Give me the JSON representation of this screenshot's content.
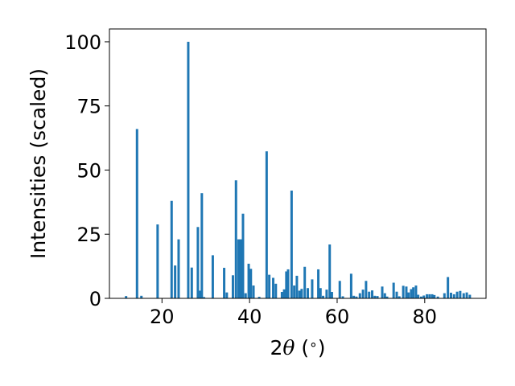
{
  "chart_data": {
    "type": "bar",
    "title": "",
    "xlabel_parts": [
      "2",
      "θ",
      " (",
      "∘",
      ")"
    ],
    "ylabel": "Intensities (scaled)",
    "xlim": [
      8,
      94
    ],
    "ylim": [
      0,
      105
    ],
    "xticks": [
      20,
      40,
      60,
      80
    ],
    "xtick_labels": [
      "20",
      "40",
      "60",
      "80"
    ],
    "yticks": [
      0,
      25,
      50,
      75,
      100
    ],
    "ytick_labels": [
      "0",
      "25",
      "50",
      "75",
      "100"
    ],
    "bar_width_deg": 0.55,
    "bar_color": "#1f77b4",
    "grid": false,
    "legend": "none",
    "x": [
      11.8,
      14.3,
      15.3,
      19.0,
      22.2,
      23.0,
      23.8,
      26.0,
      26.8,
      28.2,
      28.7,
      29.1,
      29.6,
      31.6,
      34.2,
      34.8,
      36.2,
      36.9,
      37.5,
      38.0,
      38.5,
      39.1,
      39.8,
      40.3,
      40.9,
      42.2,
      43.9,
      44.5,
      45.4,
      46.0,
      47.4,
      47.9,
      48.4,
      48.8,
      49.6,
      50.2,
      50.8,
      51.4,
      51.9,
      52.6,
      53.3,
      54.3,
      55.7,
      56.2,
      56.8,
      57.6,
      58.3,
      58.8,
      60.6,
      61.3,
      63.2,
      63.8,
      64.4,
      65.2,
      65.9,
      66.6,
      67.3,
      68.0,
      68.6,
      69.2,
      70.3,
      70.9,
      71.4,
      72.9,
      73.6,
      74.2,
      75.1,
      75.8,
      76.3,
      76.9,
      77.4,
      78.0,
      78.5,
      79.2,
      79.8,
      80.5,
      81.1,
      81.7,
      82.2,
      83.0,
      84.5,
      85.3,
      86.0,
      86.7,
      87.4,
      88.1,
      88.9,
      89.6,
      90.3
    ],
    "values": [
      0.9,
      66.0,
      1.0,
      28.8,
      38.0,
      12.8,
      23.0,
      100.0,
      12.0,
      27.8,
      3.0,
      41.0,
      0.5,
      16.8,
      11.9,
      2.3,
      9.0,
      46.0,
      23.0,
      23.0,
      33.0,
      2.0,
      13.5,
      11.5,
      5.0,
      0.6,
      57.3,
      9.2,
      8.0,
      5.7,
      2.5,
      3.5,
      10.5,
      11.3,
      42.0,
      5.0,
      8.8,
      3.0,
      3.7,
      12.3,
      4.0,
      7.4,
      11.3,
      4.0,
      1.0,
      3.4,
      21.0,
      2.5,
      6.8,
      0.8,
      9.6,
      1.0,
      0.7,
      2.0,
      3.4,
      6.8,
      2.6,
      3.1,
      1.0,
      0.9,
      4.6,
      2.0,
      0.7,
      6.1,
      2.6,
      0.8,
      4.9,
      4.6,
      2.3,
      3.6,
      4.3,
      5.0,
      1.4,
      0.7,
      1.1,
      1.6,
      1.6,
      1.6,
      1.3,
      0.7,
      2.0,
      8.3,
      2.2,
      1.6,
      2.6,
      2.9,
      2.0,
      2.3,
      1.4
    ]
  }
}
